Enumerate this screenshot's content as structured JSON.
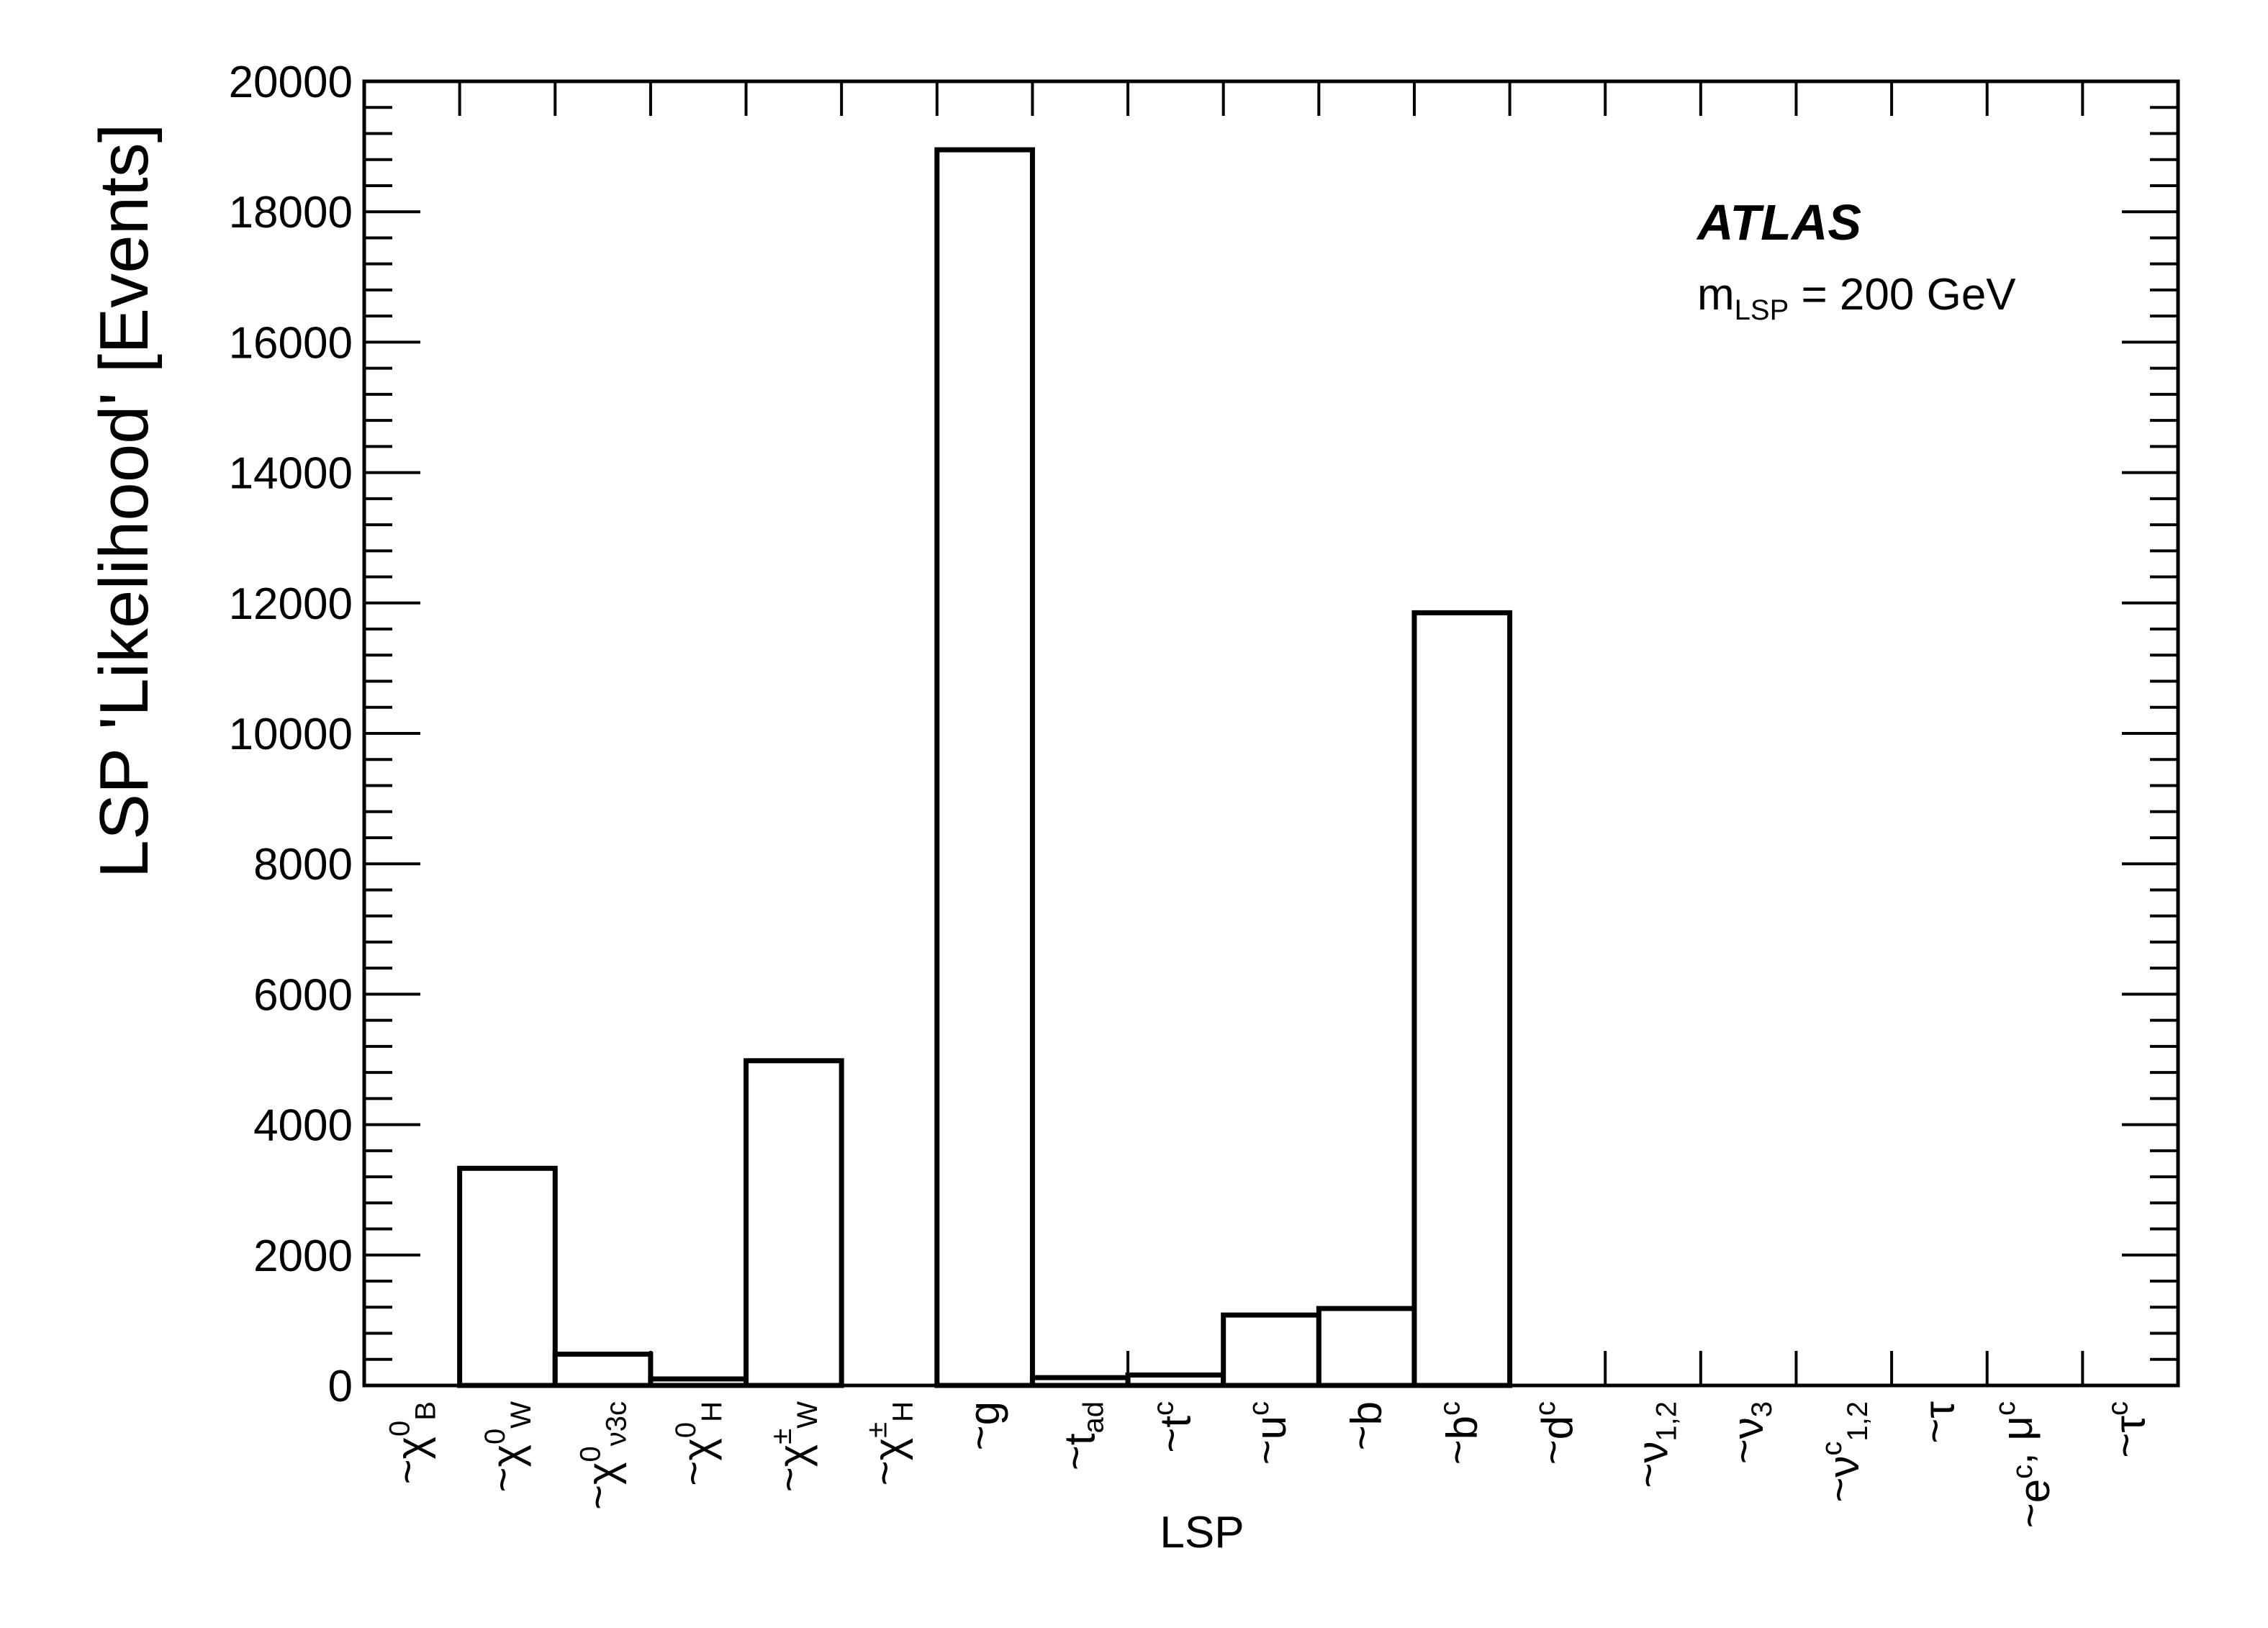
{
  "chart_data": {
    "type": "bar",
    "style": "step-histogram",
    "categories": [
      "χ̃⁰_B",
      "χ̃⁰_W",
      "χ̃⁰_ν3c",
      "χ̃⁰_H",
      "χ̃±_W",
      "χ̃±_H",
      "g̃",
      "t̃_ad",
      "t̃c",
      "ũc",
      "b̃",
      "b̃c",
      "d̃c",
      "ν̃1,2",
      "ν̃3",
      "ν̃c1,2",
      "τ̃",
      "ẽc, μ̃c",
      "τ̃c"
    ],
    "category_labels": [
      {
        "base": "χ",
        "sup": "0",
        "sub": "B"
      },
      {
        "base": "χ",
        "sup": "0",
        "sub": "W"
      },
      {
        "base": "χ",
        "sup": "0",
        "sub": "ν3c"
      },
      {
        "base": "χ",
        "sup": "0",
        "sub": "H"
      },
      {
        "base": "χ",
        "sup": "±",
        "sub": "W"
      },
      {
        "base": "χ",
        "sup": "±",
        "sub": "H"
      },
      {
        "base": "g",
        "sup": "",
        "sub": ""
      },
      {
        "base": "t",
        "sup": "",
        "sub": "ad"
      },
      {
        "base": "t",
        "sup": "c",
        "sub": ""
      },
      {
        "base": "u",
        "sup": "c",
        "sub": ""
      },
      {
        "base": "b",
        "sup": "",
        "sub": ""
      },
      {
        "base": "b",
        "sup": "c",
        "sub": ""
      },
      {
        "base": "d",
        "sup": "c",
        "sub": ""
      },
      {
        "base": "ν",
        "sup": "",
        "sub": "1,2"
      },
      {
        "base": "ν",
        "sup": "",
        "sub": "3"
      },
      {
        "base": "ν",
        "sup": "c",
        "sub": "1,2"
      },
      {
        "base": "τ",
        "sup": "",
        "sub": ""
      },
      {
        "base": "e",
        "sup": "c",
        "sub": "",
        "extra": ", μ",
        "extra_sup": "c"
      },
      {
        "base": "τ",
        "sup": "c",
        "sub": ""
      }
    ],
    "values": [
      0,
      3330,
      480,
      100,
      4980,
      0,
      18950,
      120,
      160,
      1080,
      1180,
      11850,
      0,
      0,
      0,
      0,
      0,
      0,
      0
    ],
    "xlabel": "LSP",
    "ylabel": "LSP 'Likelihood' [Events]",
    "ylim": [
      0,
      20000
    ],
    "yticks": [
      0,
      2000,
      4000,
      6000,
      8000,
      10000,
      12000,
      14000,
      16000,
      18000,
      20000
    ],
    "ytick_labels": [
      "0",
      "2000",
      "4000",
      "6000",
      "8000",
      "10000",
      "12000",
      "14000",
      "16000",
      "18000",
      "20000"
    ],
    "line_color": "#000000",
    "grid": false
  },
  "annotations": {
    "experiment": "ATLAS",
    "mass_prefix": "m",
    "mass_sub": "LSP",
    "mass_suffix": " = 200 GeV"
  }
}
